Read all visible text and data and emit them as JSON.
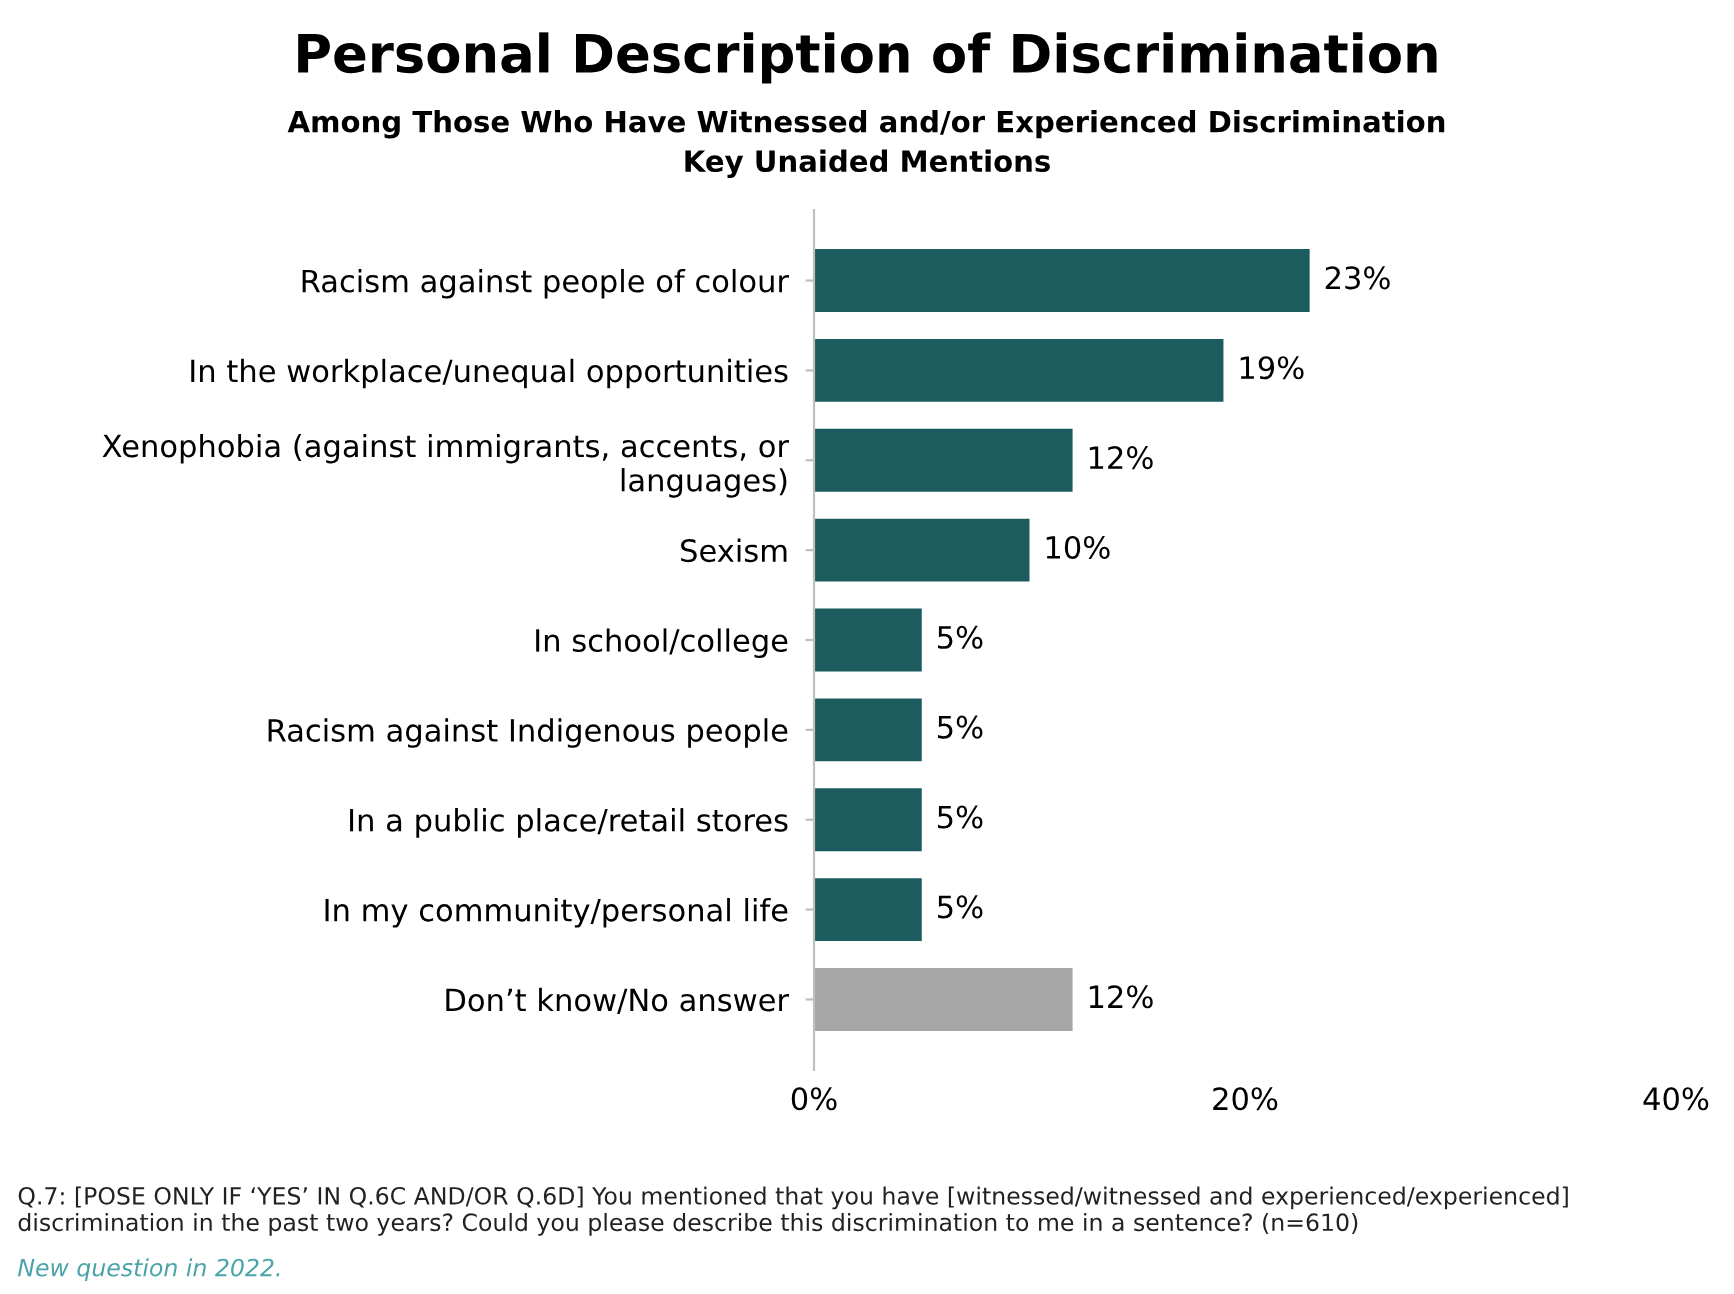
{
  "chart_data": {
    "type": "bar",
    "orientation": "horizontal",
    "title": "Personal Description of Discrimination",
    "subtitle": "Among Those Who Have Witnessed and/or Experienced Discrimination\nKey Unaided Mentions",
    "categories": [
      "Racism against people of colour",
      "In the workplace/unequal opportunities",
      "Xenophobia (against immigrants, accents, or\nlanguages)",
      "Sexism",
      "In school/college",
      "Racism against Indigenous people",
      "In a public place/retail stores",
      "In my community/personal life",
      "Don’t know/No answer"
    ],
    "values": [
      23,
      19,
      12,
      10,
      5,
      5,
      5,
      5,
      12
    ],
    "value_labels": [
      "23%",
      "19%",
      "12%",
      "10%",
      "5%",
      "5%",
      "5%",
      "5%",
      "12%"
    ],
    "colors": [
      "#1d5c5e",
      "#1d5c5e",
      "#1d5c5e",
      "#1d5c5e",
      "#1d5c5e",
      "#1d5c5e",
      "#1d5c5e",
      "#1d5c5e",
      "#a6a6a6"
    ],
    "xlim": [
      0,
      40
    ],
    "xticks": [
      {
        "value": 0,
        "label": "0%"
      },
      {
        "value": 20,
        "label": "20%"
      },
      {
        "value": 40,
        "label": "40%"
      }
    ],
    "grid": false,
    "legend": false,
    "annotations": [
      "Q.7: [POSE ONLY IF ‘YES’ IN Q.6C AND/OR Q.6D] You mentioned that you have [witnessed/witnessed and experienced/experienced] discrimination in the past two years? Could you please describe this discrimination to me in a sentence? (n=610)",
      "New question in 2022."
    ]
  }
}
